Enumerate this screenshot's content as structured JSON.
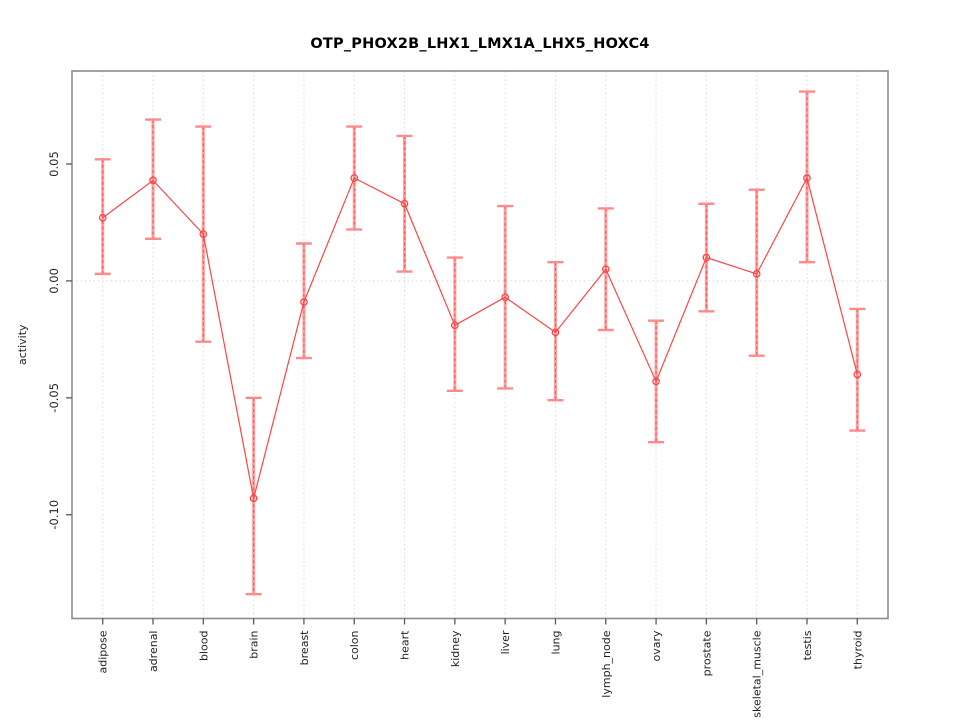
{
  "chart_data": {
    "type": "line",
    "title": "OTP_PHOX2B_LHX1_LMX1A_LHX5_HOXC4",
    "ylabel": "activity",
    "xlabel": "",
    "categories": [
      "adipose",
      "adrenal",
      "blood",
      "brain",
      "breast",
      "colon",
      "heart",
      "kidney",
      "liver",
      "lung",
      "lymph_node",
      "ovary",
      "prostate",
      "skeletal_muscle",
      "testis",
      "thyroid"
    ],
    "series": [
      {
        "name": "activity",
        "values": [
          0.027,
          0.043,
          0.02,
          -0.093,
          -0.009,
          0.044,
          0.033,
          -0.019,
          -0.007,
          -0.022,
          0.005,
          -0.043,
          0.01,
          0.003,
          0.044,
          -0.04
        ],
        "ci_lower": [
          0.003,
          0.018,
          -0.026,
          -0.134,
          -0.033,
          0.022,
          0.004,
          -0.047,
          -0.046,
          -0.051,
          -0.021,
          -0.069,
          -0.013,
          -0.032,
          0.008,
          -0.064
        ],
        "ci_upper": [
          0.052,
          0.069,
          0.066,
          -0.05,
          0.016,
          0.066,
          0.062,
          0.01,
          0.032,
          0.008,
          0.031,
          -0.017,
          0.033,
          0.039,
          0.081,
          -0.012
        ]
      }
    ],
    "ylim": [
      -0.144,
      0.09
    ],
    "yticks": [
      {
        "value": 0.05,
        "label": "0.05"
      },
      {
        "value": 0.0,
        "label": "0.00"
      },
      {
        "value": -0.05,
        "label": "-0.05"
      },
      {
        "value": -0.1,
        "label": "-0.10"
      }
    ],
    "grid": {
      "vertical_dotted_per_category": true,
      "horizontal_dotted_at_zero": true
    },
    "legend_position": "none",
    "marker": "open-circle",
    "colors": {
      "series_line": "#ff4343",
      "point": "#ff4343",
      "errorbar_band": "#ff9e9e",
      "errorbar_dash": "#ff4545",
      "errorbar_cap": "#ff8a8a",
      "grid": "#d8d8d8",
      "box": "#8c8c8c",
      "tick": "#5a5a5a",
      "tick_label": "#1f1f1f",
      "title": "#000000",
      "background": "#ffffff"
    }
  }
}
